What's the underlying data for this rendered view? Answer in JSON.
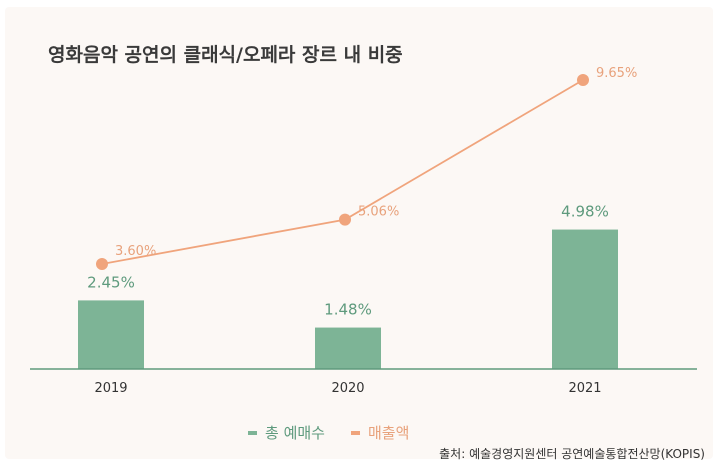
{
  "title": "영화음악 공연의 클래식/오페라 장르 내 비중",
  "source": "출처: 예술경영지원센터 공연예술통합전산망(KOPIS)",
  "legend": {
    "tickets_label": "총 예매수",
    "sales_label": "매출액"
  },
  "colors": {
    "bar": "#7db496",
    "bar_label": "#5e9a7d",
    "line": "#f0a47c",
    "line_label": "#e8a27c",
    "axis": "#5e9a7d",
    "tick_text": "#333333"
  },
  "chart_data": {
    "type": "bar",
    "categories": [
      "2019",
      "2020",
      "2021"
    ],
    "series": [
      {
        "name": "총 예매수",
        "type": "bar",
        "values": [
          2.45,
          1.48,
          4.98
        ],
        "labels": [
          "2.45%",
          "1.48%",
          "4.98%"
        ]
      },
      {
        "name": "매출액",
        "type": "line",
        "values": [
          3.6,
          5.06,
          9.65
        ],
        "labels": [
          "3.60%",
          "5.06%",
          "9.65%"
        ]
      }
    ],
    "ylim": [
      0,
      10
    ],
    "grid": false,
    "legend_position": "bottom-center"
  }
}
